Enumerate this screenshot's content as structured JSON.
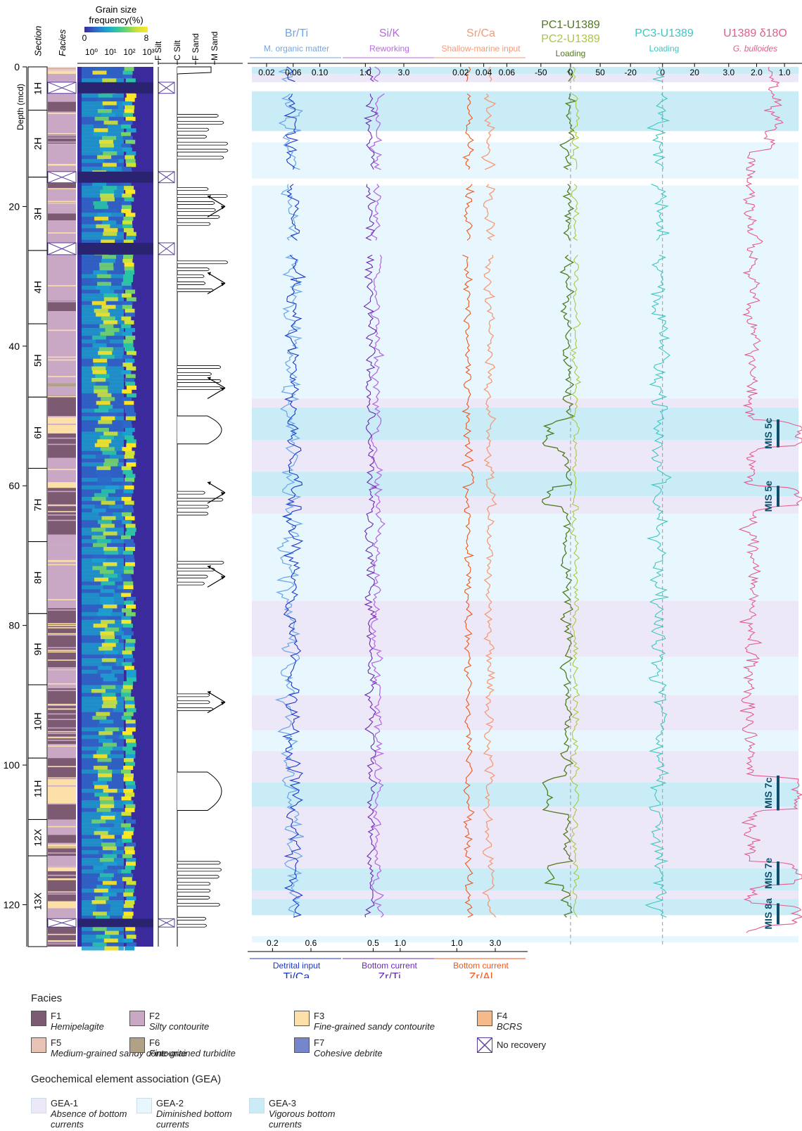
{
  "depth_axis": {
    "label": "Depth (mcd)",
    "ticks": [
      "0",
      "20",
      "40",
      "60",
      "80",
      "100",
      "120"
    ],
    "max": 126
  },
  "column_headers": {
    "section": "Section",
    "facies": "Facies",
    "grain_title_1": "Grain size",
    "grain_title_2": "frequency(%)",
    "grain_min": "0",
    "grain_max": "8",
    "grain_ticks": [
      "10⁰",
      "10¹",
      "10²",
      "10³"
    ]
  },
  "grain_classes": [
    "F Silt",
    "C Silt",
    "F Sand",
    "M Sand"
  ],
  "sections": [
    {
      "label": "1H",
      "top": 0,
      "bottom": 6.2
    },
    {
      "label": "2H",
      "top": 6.2,
      "bottom": 15.8
    },
    {
      "label": "3H",
      "top": 15.8,
      "bottom": 26.3
    },
    {
      "label": "4H",
      "top": 26.3,
      "bottom": 36.8
    },
    {
      "label": "5H",
      "top": 36.8,
      "bottom": 47.3
    },
    {
      "label": "6H",
      "top": 47.3,
      "bottom": 57.5
    },
    {
      "label": "7H",
      "top": 57.5,
      "bottom": 68.0
    },
    {
      "label": "8H",
      "top": 68.0,
      "bottom": 78.3
    },
    {
      "label": "9H",
      "top": 78.3,
      "bottom": 88.5
    },
    {
      "label": "10H",
      "top": 88.5,
      "bottom": 99.0
    },
    {
      "label": "11H",
      "top": 99.0,
      "bottom": 107.8
    },
    {
      "label": "12X",
      "top": 107.8,
      "bottom": 113.0
    },
    {
      "label": "13X",
      "top": 113.0,
      "bottom": 126.0
    }
  ],
  "no_recovery_intervals": [
    [
      2.2,
      3.8
    ],
    [
      15.0,
      16.6
    ],
    [
      25.2,
      26.9
    ],
    [
      122.0,
      123.2
    ]
  ],
  "facies_colors": {
    "F1": "#7b5a72",
    "F2": "#c8a8c4",
    "F3": "#fde0a8",
    "F4": "#f6b98a",
    "F5": "#e9c2b6",
    "F6": "#b1a186",
    "F7": "#7586cc"
  },
  "facies_intervals": [
    {
      "f": "F2",
      "top": 0,
      "bottom": 0.6
    },
    {
      "f": "F3",
      "top": 0.6,
      "bottom": 1.0
    },
    {
      "f": "F2",
      "top": 1.0,
      "bottom": 2.2
    },
    {
      "f": "F2",
      "top": 3.8,
      "bottom": 5.0
    },
    {
      "f": "F1",
      "top": 5.0,
      "bottom": 6.4
    },
    {
      "f": "F2",
      "top": 6.4,
      "bottom": 9.5
    },
    {
      "f": "F1",
      "top": 9.5,
      "bottom": 11.0
    },
    {
      "f": "F2",
      "top": 11.0,
      "bottom": 15.0
    },
    {
      "f": "F1",
      "top": 16.6,
      "bottom": 17.5
    },
    {
      "f": "F2",
      "top": 17.5,
      "bottom": 19.2
    },
    {
      "f": "F3",
      "top": 19.2,
      "bottom": 19.6
    },
    {
      "f": "F2",
      "top": 19.6,
      "bottom": 21.0
    },
    {
      "f": "F1",
      "top": 21.0,
      "bottom": 22.0
    },
    {
      "f": "F2",
      "top": 22.0,
      "bottom": 25.2
    },
    {
      "f": "F2",
      "top": 26.9,
      "bottom": 33.5
    },
    {
      "f": "F1",
      "top": 33.5,
      "bottom": 35.0
    },
    {
      "f": "F2",
      "top": 35.0,
      "bottom": 45.3
    },
    {
      "f": "F6",
      "top": 45.3,
      "bottom": 45.8
    },
    {
      "f": "F2",
      "top": 45.8,
      "bottom": 47.0
    },
    {
      "f": "F1",
      "top": 47.0,
      "bottom": 50.0
    },
    {
      "f": "F3",
      "top": 50.0,
      "bottom": 52.5
    },
    {
      "f": "F1",
      "top": 52.5,
      "bottom": 56.0
    },
    {
      "f": "F2",
      "top": 56.0,
      "bottom": 57.5
    },
    {
      "f": "F2",
      "top": 57.5,
      "bottom": 59.5
    },
    {
      "f": "F3",
      "top": 59.5,
      "bottom": 60.3
    },
    {
      "f": "F1",
      "top": 60.3,
      "bottom": 67.0
    },
    {
      "f": "F2",
      "top": 67.0,
      "bottom": 68.5
    },
    {
      "f": "F2",
      "top": 68.5,
      "bottom": 77.5
    },
    {
      "f": "F1",
      "top": 77.5,
      "bottom": 86.0
    },
    {
      "f": "F2",
      "top": 86.0,
      "bottom": 89.0
    },
    {
      "f": "F1",
      "top": 89.0,
      "bottom": 97.0
    },
    {
      "f": "F2",
      "top": 97.0,
      "bottom": 99.0
    },
    {
      "f": "F1",
      "top": 99.0,
      "bottom": 102.0
    },
    {
      "f": "F3",
      "top": 102.0,
      "bottom": 105.5
    },
    {
      "f": "F1",
      "top": 105.5,
      "bottom": 107.8
    },
    {
      "f": "F2",
      "top": 107.8,
      "bottom": 110.0
    },
    {
      "f": "F1",
      "top": 110.0,
      "bottom": 113.0
    },
    {
      "f": "F2",
      "top": 113.0,
      "bottom": 114.5
    },
    {
      "f": "F3",
      "top": 114.5,
      "bottom": 115.2
    },
    {
      "f": "F1",
      "top": 115.2,
      "bottom": 119.5
    },
    {
      "f": "F3",
      "top": 119.5,
      "bottom": 120.5
    },
    {
      "f": "F2",
      "top": 120.5,
      "bottom": 122.0
    },
    {
      "f": "F1",
      "top": 123.2,
      "bottom": 126.0
    }
  ],
  "gea_colors": {
    "GEA-1": "#ede8f8",
    "GEA-2": "#e8f7fd",
    "GEA-3": "#c9ecf7"
  },
  "gea_bands": [
    {
      "g": "GEA-3",
      "top": 0,
      "bottom": 1.0
    },
    {
      "g": "GEA-1",
      "top": 1.0,
      "bottom": 2.2
    },
    {
      "g": "GEA-3",
      "top": 3.5,
      "bottom": 9.2
    },
    {
      "g": "GEA-2",
      "top": 10.8,
      "bottom": 16.0
    },
    {
      "g": "GEA-2",
      "top": 17.0,
      "bottom": 47.5
    },
    {
      "g": "GEA-1",
      "top": 47.5,
      "bottom": 48.8
    },
    {
      "g": "GEA-3",
      "top": 48.8,
      "bottom": 53.5
    },
    {
      "g": "GEA-1",
      "top": 53.5,
      "bottom": 58.0
    },
    {
      "g": "GEA-3",
      "top": 58.0,
      "bottom": 61.5
    },
    {
      "g": "GEA-1",
      "top": 61.5,
      "bottom": 64.0
    },
    {
      "g": "GEA-2",
      "top": 64.0,
      "bottom": 76.5
    },
    {
      "g": "GEA-1",
      "top": 76.5,
      "bottom": 84.5
    },
    {
      "g": "GEA-2",
      "top": 84.5,
      "bottom": 90.0
    },
    {
      "g": "GEA-1",
      "top": 90.0,
      "bottom": 95.0
    },
    {
      "g": "GEA-2",
      "top": 95.0,
      "bottom": 98.0
    },
    {
      "g": "GEA-1",
      "top": 98.0,
      "bottom": 102.5
    },
    {
      "g": "GEA-3",
      "top": 102.5,
      "bottom": 106.0
    },
    {
      "g": "GEA-1",
      "top": 106.0,
      "bottom": 114.8
    },
    {
      "g": "GEA-3",
      "top": 114.8,
      "bottom": 118.0
    },
    {
      "g": "GEA-1",
      "top": 118.0,
      "bottom": 119.2
    },
    {
      "g": "GEA-3",
      "top": 119.2,
      "bottom": 121.5
    },
    {
      "g": "GEA-2",
      "top": 124.5,
      "bottom": 125.4
    }
  ],
  "mis_events": [
    {
      "label": "MIS 5c",
      "top": 50.5,
      "bottom": 54.5
    },
    {
      "label": "MIS 5e",
      "top": 60.0,
      "bottom": 63.0
    },
    {
      "label": "MIS 7c",
      "top": 101.5,
      "bottom": 106.5
    },
    {
      "label": "MIS 7e",
      "top": 113.8,
      "bottom": 117.2
    },
    {
      "label": "MIS 8a",
      "top": 119.8,
      "bottom": 122.8
    }
  ],
  "chart_data": [
    {
      "type": "line",
      "id": "brti_tica",
      "series": [
        {
          "name": "Br/Ti",
          "subtitle": "M. organic matter",
          "color": "#6fa8e8",
          "axis": "top",
          "range": [
            0,
            0.13
          ],
          "ticks": [
            "0.02",
            "0.06",
            "0.10"
          ],
          "tick_values": [
            0.02,
            0.06,
            0.1
          ],
          "mean": 0.055,
          "amp": 0.018
        },
        {
          "name": "Ti/Ca",
          "subtitle": "Detrital input",
          "color": "#1a38c8",
          "axis": "bottom",
          "range": [
            0,
            0.9
          ],
          "ticks": [
            "0.2",
            "0.6"
          ],
          "tick_values": [
            0.2,
            0.6
          ],
          "mean": 0.42,
          "amp": 0.1
        }
      ]
    },
    {
      "type": "line",
      "id": "sik_zrti",
      "series": [
        {
          "name": "Si/K",
          "subtitle": "Reworking",
          "color": "#b76ae3",
          "axis": "top",
          "range": [
            0,
            4.5
          ],
          "ticks": [
            "1.0",
            "3.0"
          ],
          "tick_values": [
            1.0,
            3.0
          ],
          "mean": 1.6,
          "amp": 0.35
        },
        {
          "name": "Zr/Ti",
          "subtitle": "Bottom current",
          "color": "#6a28b0",
          "axis": "bottom",
          "range": [
            0,
            1.6
          ],
          "ticks": [
            "0.5",
            "1.0"
          ],
          "tick_values": [
            0.5,
            1.0
          ],
          "mean": 0.45,
          "amp": 0.12
        }
      ]
    },
    {
      "type": "line",
      "id": "srca_zral",
      "series": [
        {
          "name": "Sr/Ca",
          "subtitle": "Shallow-marine input",
          "color": "#f59a77",
          "axis": "top",
          "range": [
            0,
            0.075
          ],
          "ticks": [
            "0.02",
            "0.04",
            "0.06"
          ],
          "tick_values": [
            0.02,
            0.04,
            0.06
          ],
          "mean": 0.045,
          "amp": 0.006
        },
        {
          "name": "Zr/Al",
          "subtitle": "Bottom current",
          "color": "#f0561a",
          "axis": "bottom",
          "range": [
            0,
            4.5
          ],
          "ticks": [
            "1.0",
            "3.0"
          ],
          "tick_values": [
            1.0,
            3.0
          ],
          "mean": 1.6,
          "amp": 0.3
        }
      ]
    },
    {
      "type": "line",
      "id": "pc12",
      "series": [
        {
          "name": "PC1-U1389",
          "subtitle": "",
          "color": "#4f7a1c",
          "axis": "top",
          "range": [
            -70,
            70
          ],
          "ticks": [
            "-50",
            "0",
            "50"
          ],
          "tick_values": [
            -50,
            0,
            50
          ],
          "mean": -5,
          "amp": 12
        },
        {
          "name": "PC2-U1389",
          "subtitle": "Loading",
          "color": "#a9c93b",
          "axis": "top",
          "range": [
            -70,
            70
          ],
          "ticks": [],
          "tick_values": [],
          "mean": 8,
          "amp": 8
        }
      ]
    },
    {
      "type": "line",
      "id": "pc3",
      "series": [
        {
          "name": "PC3-U1389",
          "subtitle": "Loading",
          "color": "#3fc6c0",
          "axis": "top",
          "range": [
            -28,
            30
          ],
          "ticks": [
            "-20",
            "0",
            "20"
          ],
          "tick_values": [
            -20,
            0,
            20
          ],
          "mean": -2,
          "amp": 7
        }
      ]
    },
    {
      "type": "line",
      "id": "d18o",
      "series": [
        {
          "name": "U1389 δ18O",
          "subtitle": "G. bulloides",
          "color": "#e45c8f",
          "axis": "top",
          "reversed": true,
          "range": [
            3.6,
            0.5
          ],
          "ticks": [
            "3.0",
            "2.0",
            "1.0"
          ],
          "tick_values": [
            3.0,
            2.0,
            1.0
          ],
          "mean": 2.2,
          "amp": 0.35
        }
      ]
    }
  ],
  "legend": {
    "facies_title": "Facies",
    "facies_items": [
      {
        "code": "F1",
        "desc": "Hemipelagite",
        "color": "#7b5a72"
      },
      {
        "code": "F2",
        "desc": "Silty contourite",
        "color": "#c8a8c4"
      },
      {
        "code": "F3",
        "desc": "Fine-grained sandy contourite",
        "color": "#fde0a8"
      },
      {
        "code": "F4",
        "desc": "BCRS",
        "color": "#f6b98a"
      },
      {
        "code": "F5",
        "desc": "Medium-grained sandy contourite",
        "color": "#e9c2b6"
      },
      {
        "code": "F6",
        "desc": "Fine-grained turbidite",
        "color": "#b1a186"
      },
      {
        "code": "F7",
        "desc": "Cohesive debrite",
        "color": "#7586cc"
      },
      {
        "code": "",
        "desc": "No recovery",
        "color": "#ffffff"
      }
    ],
    "gea_title": "Geochemical element association (GEA)",
    "gea_items": [
      {
        "code": "GEA-1",
        "desc": "Absence of bottom currents",
        "color": "#ede8f8"
      },
      {
        "code": "GEA-2",
        "desc": "Diminished bottom currents",
        "color": "#e8f7fd"
      },
      {
        "code": "GEA-3",
        "desc": "Vigorous bottom currents",
        "color": "#c9ecf7"
      }
    ]
  }
}
